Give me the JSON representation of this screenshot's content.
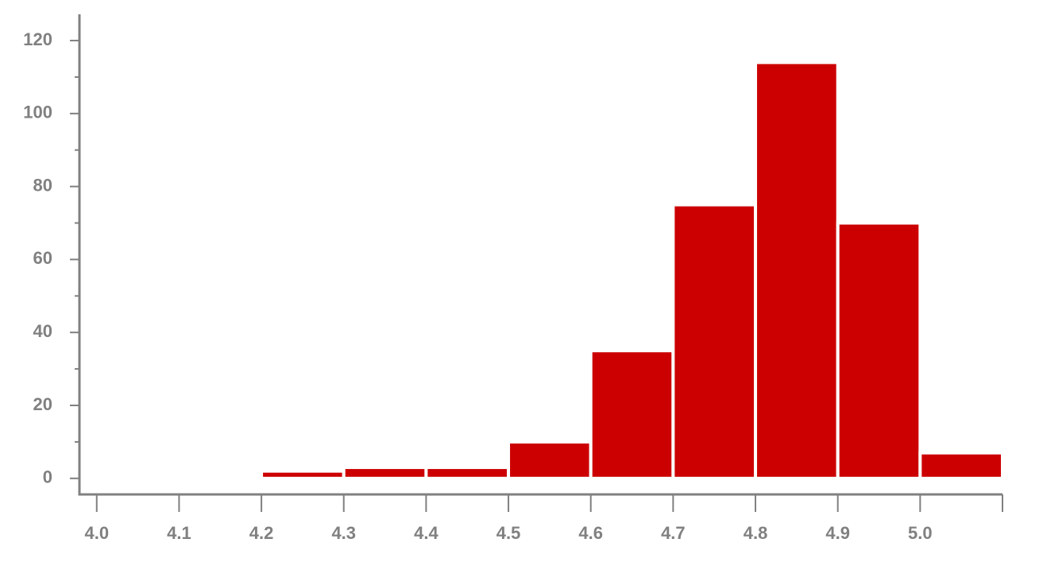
{
  "chart_data": {
    "type": "histogram",
    "bins": [
      4.0,
      4.1,
      4.2,
      4.3,
      4.4,
      4.5,
      4.6,
      4.7,
      4.8,
      4.9,
      5.0,
      5.1
    ],
    "values": [
      0,
      0,
      2,
      3,
      3,
      10,
      35,
      75,
      114,
      70,
      7
    ],
    "color": "#cc0000",
    "xlim": [
      3.979,
      5.1
    ],
    "xticks": [
      {
        "value": 4.0,
        "label": "4.0"
      },
      {
        "value": 4.1,
        "label": "4.1"
      },
      {
        "value": 4.2,
        "label": "4.2"
      },
      {
        "value": 4.3,
        "label": "4.3"
      },
      {
        "value": 4.4,
        "label": "4.4"
      },
      {
        "value": 4.5,
        "label": "4.5"
      },
      {
        "value": 4.6,
        "label": "4.6"
      },
      {
        "value": 4.7,
        "label": "4.7"
      },
      {
        "value": 4.8,
        "label": "4.8"
      },
      {
        "value": 4.9,
        "label": "4.9"
      },
      {
        "value": 5.0,
        "label": "5.0"
      }
    ],
    "ylim": [
      -4.4,
      127.2
    ],
    "yticks": [
      0,
      20,
      40,
      60,
      80,
      100,
      120
    ],
    "minor_yticks": [
      10,
      30,
      50,
      70,
      90,
      110
    ],
    "grid": false
  }
}
